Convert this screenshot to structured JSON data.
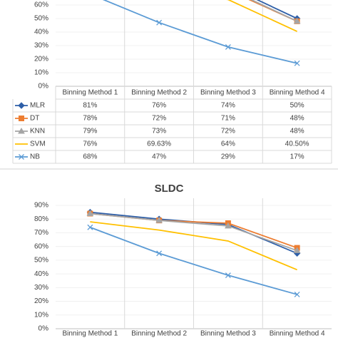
{
  "chart_data": [
    {
      "type": "line",
      "categories": [
        "Binning Method 1",
        "Binning Method 2",
        "Binning Method 3",
        "Binning Method 4"
      ],
      "series": [
        {
          "name": "MLR",
          "color": "#2e5fa8",
          "marker": "diamond",
          "values": [
            81,
            76,
            74,
            50
          ],
          "value_labels": [
            "81%",
            "76%",
            "74%",
            "50%"
          ]
        },
        {
          "name": "DT",
          "color": "#ed7d31",
          "marker": "square",
          "values": [
            78,
            72,
            71,
            48
          ],
          "value_labels": [
            "78%",
            "72%",
            "71%",
            "48%"
          ]
        },
        {
          "name": "KNN",
          "color": "#a5a5a5",
          "marker": "triangle",
          "values": [
            79,
            73,
            72,
            48
          ],
          "value_labels": [
            "79%",
            "73%",
            "72%",
            "48%"
          ]
        },
        {
          "name": "SVM",
          "color": "#ffc000",
          "marker": "none",
          "values": [
            76,
            69.63,
            64,
            40.5
          ],
          "value_labels": [
            "76%",
            "69.63%",
            "64%",
            "40.50%"
          ]
        },
        {
          "name": "NB",
          "color": "#5b9bd5",
          "marker": "x",
          "values": [
            68,
            47,
            29,
            17
          ],
          "value_labels": [
            "68%",
            "47%",
            "29%",
            "17%"
          ]
        }
      ],
      "ylim": [
        0,
        60
      ],
      "yticks": [
        {
          "value": 0,
          "label": "0%"
        },
        {
          "value": 10,
          "label": "10%"
        },
        {
          "value": 20,
          "label": "20%"
        },
        {
          "value": 30,
          "label": "30%"
        },
        {
          "value": 40,
          "label": "40%"
        },
        {
          "value": 50,
          "label": "50%"
        },
        {
          "value": 60,
          "label": "60%"
        }
      ],
      "grid": true,
      "data_table": true
    },
    {
      "type": "line",
      "title": "SLDC",
      "categories": [
        "Binning Method 1",
        "Binning Method 2",
        "Binning Method 3",
        "Binning Method 4"
      ],
      "series": [
        {
          "name": "MLR",
          "color": "#2e5fa8",
          "marker": "diamond",
          "values": [
            85,
            80,
            76,
            55
          ]
        },
        {
          "name": "DT",
          "color": "#ed7d31",
          "marker": "square",
          "values": [
            84,
            79,
            77,
            59
          ]
        },
        {
          "name": "KNN",
          "color": "#a5a5a5",
          "marker": "triangle",
          "values": [
            84,
            79,
            75,
            57
          ]
        },
        {
          "name": "SVM",
          "color": "#ffc000",
          "marker": "none",
          "values": [
            78,
            72,
            64,
            43
          ]
        },
        {
          "name": "NB",
          "color": "#5b9bd5",
          "marker": "x",
          "values": [
            74,
            55,
            39,
            25
          ]
        }
      ],
      "ylim": [
        0,
        90
      ],
      "yticks": [
        {
          "value": 0,
          "label": "0%"
        },
        {
          "value": 10,
          "label": "10%"
        },
        {
          "value": 20,
          "label": "20%"
        },
        {
          "value": 30,
          "label": "30%"
        },
        {
          "value": 40,
          "label": "40%"
        },
        {
          "value": 50,
          "label": "50%"
        },
        {
          "value": 60,
          "label": "60%"
        },
        {
          "value": 70,
          "label": "70%"
        },
        {
          "value": 80,
          "label": "80%"
        },
        {
          "value": 90,
          "label": "90%"
        }
      ],
      "grid": true,
      "data_table": false
    }
  ]
}
